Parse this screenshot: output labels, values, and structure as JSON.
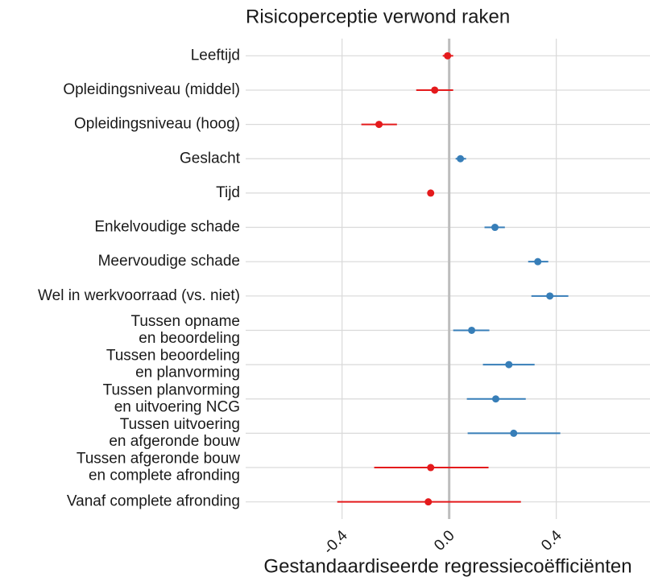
{
  "chart_data": {
    "type": "coefficient",
    "title": "Risicoperceptie verwond raken",
    "x_label": "Gestandaardiseerde regressiecoëfficiënten",
    "categories": [
      [
        "Leeftijd"
      ],
      [
        "Opleidingsniveau (middel)"
      ],
      [
        "Opleidingsniveau (hoog)"
      ],
      [
        "Geslacht"
      ],
      [
        "Tijd"
      ],
      [
        "Enkelvoudige schade"
      ],
      [
        "Meervoudige schade"
      ],
      [
        "Wel in werkvoorraad (vs. niet)"
      ],
      [
        "Tussen opname",
        "en beoordeling"
      ],
      [
        "Tussen beoordeling",
        "en planvorming"
      ],
      [
        "Tussen planvorming",
        "en uitvoering NCG"
      ],
      [
        "Tussen uitvoering",
        "en afgeronde bouw"
      ],
      [
        "Tussen afgeronde bouw",
        "en complete afronding"
      ],
      [
        "Vanaf complete afronding"
      ]
    ],
    "values": [
      -0.006,
      -0.054,
      -0.262,
      0.042,
      -0.069,
      0.171,
      0.331,
      0.376,
      0.084,
      0.223,
      0.174,
      0.241,
      -0.069,
      -0.078
    ],
    "lower": [
      -0.024,
      -0.123,
      -0.328,
      0.024,
      -0.075,
      0.132,
      0.295,
      0.307,
      0.015,
      0.126,
      0.066,
      0.069,
      -0.28,
      -0.418
    ],
    "upper": [
      0.015,
      0.015,
      -0.195,
      0.063,
      -0.06,
      0.208,
      0.37,
      0.445,
      0.15,
      0.319,
      0.286,
      0.415,
      0.147,
      0.268
    ],
    "colors": [
      "#e41a1c",
      "#e41a1c",
      "#e41a1c",
      "#377eb8",
      "#e41a1c",
      "#377eb8",
      "#377eb8",
      "#377eb8",
      "#377eb8",
      "#377eb8",
      "#377eb8",
      "#377eb8",
      "#e41a1c",
      "#e41a1c"
    ],
    "xlim": [
      -0.76,
      0.75
    ],
    "xticks": [
      -0.4,
      {
        "value": 0,
        "label": "0.0"
      },
      0.4
    ],
    "grid": true
  }
}
